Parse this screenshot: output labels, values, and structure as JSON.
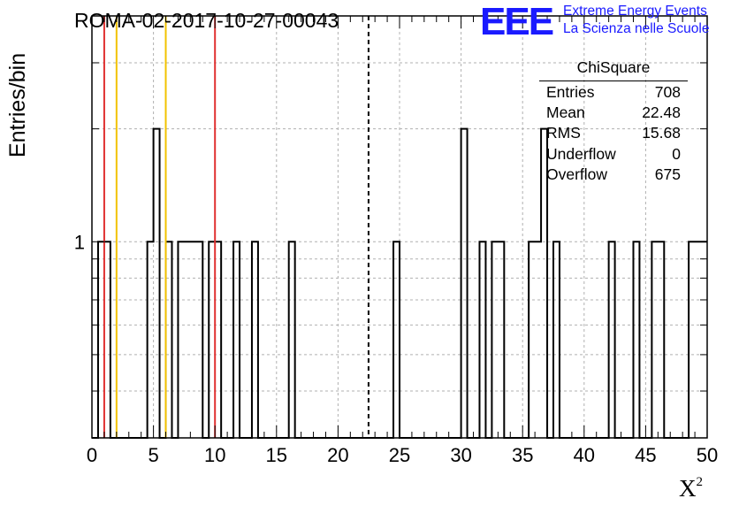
{
  "run_id": "ROMA-02-2017-10-27-00043",
  "logo": {
    "mark": "EEE",
    "line1": "Extreme Energy Events",
    "line2": "La Scienza nelle Scuole"
  },
  "stats": {
    "title": "ChiSquare",
    "rows": [
      {
        "label": "Entries",
        "value": "708"
      },
      {
        "label": "Mean",
        "value": "22.48"
      },
      {
        "label": "RMS",
        "value": "15.68"
      },
      {
        "label": "Underflow",
        "value": "0"
      },
      {
        "label": "Overflow",
        "value": "675"
      }
    ]
  },
  "chart_data": {
    "type": "bar",
    "histogram": true,
    "xlabel": "X",
    "xlabel_sup": "2",
    "ylabel": "Entries/bin",
    "xlim": [
      0,
      50
    ],
    "ylim": [
      0.3,
      4
    ],
    "log_y": true,
    "bin_width": 0.5,
    "grid": true,
    "x_ticks": [
      "0",
      "5",
      "10",
      "15",
      "20",
      "25",
      "30",
      "35",
      "40",
      "45",
      "50"
    ],
    "y_ticks": [
      "1"
    ],
    "bins": [
      {
        "x": 0.5,
        "value": 1
      },
      {
        "x": 1.0,
        "value": 1
      },
      {
        "x": 4.5,
        "value": 1
      },
      {
        "x": 5.0,
        "value": 2
      },
      {
        "x": 6.0,
        "value": 1
      },
      {
        "x": 7.0,
        "value": 1
      },
      {
        "x": 7.5,
        "value": 1
      },
      {
        "x": 8.0,
        "value": 1
      },
      {
        "x": 8.5,
        "value": 1
      },
      {
        "x": 9.5,
        "value": 1
      },
      {
        "x": 10.0,
        "value": 1
      },
      {
        "x": 11.5,
        "value": 1
      },
      {
        "x": 13.0,
        "value": 1
      },
      {
        "x": 16.0,
        "value": 1
      },
      {
        "x": 24.5,
        "value": 1
      },
      {
        "x": 30.0,
        "value": 2
      },
      {
        "x": 31.5,
        "value": 1
      },
      {
        "x": 32.5,
        "value": 1
      },
      {
        "x": 33.0,
        "value": 1
      },
      {
        "x": 35.5,
        "value": 1
      },
      {
        "x": 36.0,
        "value": 1
      },
      {
        "x": 36.5,
        "value": 2
      },
      {
        "x": 37.5,
        "value": 1
      },
      {
        "x": 42.0,
        "value": 1
      },
      {
        "x": 44.0,
        "value": 1
      },
      {
        "x": 45.5,
        "value": 1
      },
      {
        "x": 46.0,
        "value": 1
      },
      {
        "x": 48.5,
        "value": 1
      },
      {
        "x": 49.0,
        "value": 1
      },
      {
        "x": 49.5,
        "value": 1
      }
    ],
    "vertical_lines": [
      {
        "x": 1,
        "color": "#e03030",
        "style": "solid"
      },
      {
        "x": 2,
        "color": "#f2c200",
        "style": "solid"
      },
      {
        "x": 6,
        "color": "#f2c200",
        "style": "solid"
      },
      {
        "x": 10,
        "color": "#e03030",
        "style": "solid"
      },
      {
        "x": 22.48,
        "color": "#000000",
        "style": "dashed"
      }
    ]
  }
}
